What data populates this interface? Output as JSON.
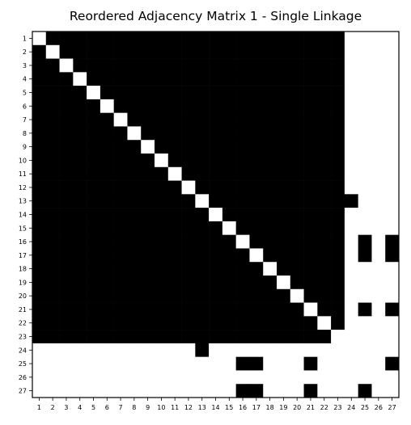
{
  "chart_data": {
    "type": "heatmap",
    "title": "Reordered Adjacency Matrix 1 - Single Linkage",
    "xlabel": "",
    "ylabel": "",
    "labels": [
      "1",
      "2",
      "3",
      "4",
      "5",
      "6",
      "7",
      "8",
      "9",
      "10",
      "11",
      "12",
      "13",
      "14",
      "15",
      "16",
      "17",
      "18",
      "19",
      "20",
      "21",
      "22",
      "23",
      "24",
      "25",
      "26",
      "27"
    ],
    "colormap": {
      "0": "#ffffff",
      "1": "#000000"
    },
    "matrix": [
      [
        0,
        1,
        1,
        1,
        1,
        1,
        1,
        1,
        1,
        1,
        1,
        1,
        1,
        1,
        1,
        1,
        1,
        1,
        1,
        1,
        1,
        1,
        1,
        0,
        0,
        0,
        0
      ],
      [
        1,
        0,
        1,
        1,
        1,
        1,
        1,
        1,
        1,
        1,
        1,
        1,
        1,
        1,
        1,
        1,
        1,
        1,
        1,
        1,
        1,
        1,
        1,
        0,
        0,
        0,
        0
      ],
      [
        1,
        1,
        0,
        1,
        1,
        1,
        1,
        1,
        1,
        1,
        1,
        1,
        1,
        1,
        1,
        1,
        1,
        1,
        1,
        1,
        1,
        1,
        1,
        0,
        0,
        0,
        0
      ],
      [
        1,
        1,
        1,
        0,
        1,
        1,
        1,
        1,
        1,
        1,
        1,
        1,
        1,
        1,
        1,
        1,
        1,
        1,
        1,
        1,
        1,
        1,
        1,
        0,
        0,
        0,
        0
      ],
      [
        1,
        1,
        1,
        1,
        0,
        1,
        1,
        1,
        1,
        1,
        1,
        1,
        1,
        1,
        1,
        1,
        1,
        1,
        1,
        1,
        1,
        1,
        1,
        0,
        0,
        0,
        0
      ],
      [
        1,
        1,
        1,
        1,
        1,
        0,
        1,
        1,
        1,
        1,
        1,
        1,
        1,
        1,
        1,
        1,
        1,
        1,
        1,
        1,
        1,
        1,
        1,
        0,
        0,
        0,
        0
      ],
      [
        1,
        1,
        1,
        1,
        1,
        1,
        0,
        1,
        1,
        1,
        1,
        1,
        1,
        1,
        1,
        1,
        1,
        1,
        1,
        1,
        1,
        1,
        1,
        0,
        0,
        0,
        0
      ],
      [
        1,
        1,
        1,
        1,
        1,
        1,
        1,
        0,
        1,
        1,
        1,
        1,
        1,
        1,
        1,
        1,
        1,
        1,
        1,
        1,
        1,
        1,
        1,
        0,
        0,
        0,
        0
      ],
      [
        1,
        1,
        1,
        1,
        1,
        1,
        1,
        1,
        0,
        1,
        1,
        1,
        1,
        1,
        1,
        1,
        1,
        1,
        1,
        1,
        1,
        1,
        1,
        0,
        0,
        0,
        0
      ],
      [
        1,
        1,
        1,
        1,
        1,
        1,
        1,
        1,
        1,
        0,
        1,
        1,
        1,
        1,
        1,
        1,
        1,
        1,
        1,
        1,
        1,
        1,
        1,
        0,
        0,
        0,
        0
      ],
      [
        1,
        1,
        1,
        1,
        1,
        1,
        1,
        1,
        1,
        1,
        0,
        1,
        1,
        1,
        1,
        1,
        1,
        1,
        1,
        1,
        1,
        1,
        1,
        0,
        0,
        0,
        0
      ],
      [
        1,
        1,
        1,
        1,
        1,
        1,
        1,
        1,
        1,
        1,
        1,
        0,
        1,
        1,
        1,
        1,
        1,
        1,
        1,
        1,
        1,
        1,
        1,
        0,
        0,
        0,
        0
      ],
      [
        1,
        1,
        1,
        1,
        1,
        1,
        1,
        1,
        1,
        1,
        1,
        1,
        0,
        1,
        1,
        1,
        1,
        1,
        1,
        1,
        1,
        1,
        1,
        1,
        0,
        0,
        0
      ],
      [
        1,
        1,
        1,
        1,
        1,
        1,
        1,
        1,
        1,
        1,
        1,
        1,
        1,
        0,
        1,
        1,
        1,
        1,
        1,
        1,
        1,
        1,
        1,
        0,
        0,
        0,
        0
      ],
      [
        1,
        1,
        1,
        1,
        1,
        1,
        1,
        1,
        1,
        1,
        1,
        1,
        1,
        1,
        0,
        1,
        1,
        1,
        1,
        1,
        1,
        1,
        1,
        0,
        0,
        0,
        0
      ],
      [
        1,
        1,
        1,
        1,
        1,
        1,
        1,
        1,
        1,
        1,
        1,
        1,
        1,
        1,
        1,
        0,
        1,
        1,
        1,
        1,
        1,
        1,
        1,
        0,
        1,
        0,
        1
      ],
      [
        1,
        1,
        1,
        1,
        1,
        1,
        1,
        1,
        1,
        1,
        1,
        1,
        1,
        1,
        1,
        1,
        0,
        1,
        1,
        1,
        1,
        1,
        1,
        0,
        1,
        0,
        1
      ],
      [
        1,
        1,
        1,
        1,
        1,
        1,
        1,
        1,
        1,
        1,
        1,
        1,
        1,
        1,
        1,
        1,
        1,
        0,
        1,
        1,
        1,
        1,
        1,
        0,
        0,
        0,
        0
      ],
      [
        1,
        1,
        1,
        1,
        1,
        1,
        1,
        1,
        1,
        1,
        1,
        1,
        1,
        1,
        1,
        1,
        1,
        1,
        0,
        1,
        1,
        1,
        1,
        0,
        0,
        0,
        0
      ],
      [
        1,
        1,
        1,
        1,
        1,
        1,
        1,
        1,
        1,
        1,
        1,
        1,
        1,
        1,
        1,
        1,
        1,
        1,
        1,
        0,
        1,
        1,
        1,
        0,
        0,
        0,
        0
      ],
      [
        1,
        1,
        1,
        1,
        1,
        1,
        1,
        1,
        1,
        1,
        1,
        1,
        1,
        1,
        1,
        1,
        1,
        1,
        1,
        1,
        0,
        1,
        1,
        0,
        1,
        0,
        1
      ],
      [
        1,
        1,
        1,
        1,
        1,
        1,
        1,
        1,
        1,
        1,
        1,
        1,
        1,
        1,
        1,
        1,
        1,
        1,
        1,
        1,
        1,
        0,
        1,
        0,
        0,
        0,
        0
      ],
      [
        1,
        1,
        1,
        1,
        1,
        1,
        1,
        1,
        1,
        1,
        1,
        1,
        1,
        1,
        1,
        1,
        1,
        1,
        1,
        1,
        1,
        1,
        0,
        0,
        0,
        0,
        0
      ],
      [
        0,
        0,
        0,
        0,
        0,
        0,
        0,
        0,
        0,
        0,
        0,
        0,
        1,
        0,
        0,
        0,
        0,
        0,
        0,
        0,
        0,
        0,
        0,
        0,
        0,
        0,
        0
      ],
      [
        0,
        0,
        0,
        0,
        0,
        0,
        0,
        0,
        0,
        0,
        0,
        0,
        0,
        0,
        0,
        1,
        1,
        0,
        0,
        0,
        1,
        0,
        0,
        0,
        0,
        0,
        1
      ],
      [
        0,
        0,
        0,
        0,
        0,
        0,
        0,
        0,
        0,
        0,
        0,
        0,
        0,
        0,
        0,
        0,
        0,
        0,
        0,
        0,
        0,
        0,
        0,
        0,
        0,
        0,
        0
      ],
      [
        0,
        0,
        0,
        0,
        0,
        0,
        0,
        0,
        0,
        0,
        0,
        0,
        0,
        0,
        0,
        1,
        1,
        0,
        0,
        0,
        1,
        0,
        0,
        0,
        1,
        0,
        0
      ]
    ]
  }
}
